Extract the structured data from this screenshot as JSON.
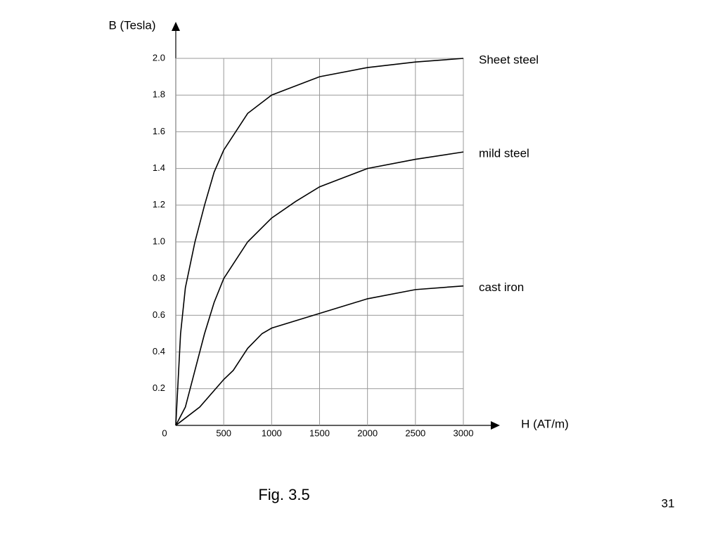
{
  "chart_data": {
    "type": "line",
    "y_label": "B (Tesla)",
    "x_label": "H (AT/m)",
    "xlim": [
      0,
      3000
    ],
    "ylim": [
      0,
      2
    ],
    "xticks": [
      0,
      500,
      1000,
      1500,
      2000,
      2500,
      3000
    ],
    "yticks": [
      0.2,
      0.4,
      0.6,
      0.8,
      {
        "value": 1,
        "label": "1.0"
      },
      1.2,
      1.4,
      1.6,
      1.8,
      {
        "value": 2,
        "label": "2.0"
      }
    ],
    "grid": true,
    "series": [
      {
        "name": "Sheet steel",
        "color": "#000000",
        "x": [
          0,
          50,
          100,
          200,
          300,
          400,
          500,
          750,
          1000,
          1500,
          2000,
          2500,
          3000
        ],
        "values": [
          0,
          0.5,
          0.75,
          1.0,
          1.2,
          1.38,
          1.5,
          1.7,
          1.8,
          1.9,
          1.95,
          1.98,
          2.0
        ]
      },
      {
        "name": "mild steel",
        "color": "#000000",
        "x": [
          0,
          100,
          200,
          300,
          400,
          500,
          750,
          1000,
          1250,
          1500,
          2000,
          2500,
          3000
        ],
        "values": [
          0,
          0.1,
          0.3,
          0.5,
          0.67,
          0.8,
          1.0,
          1.13,
          1.22,
          1.3,
          1.4,
          1.45,
          1.49
        ]
      },
      {
        "name": "cast iron",
        "color": "#000000",
        "x": [
          0,
          250,
          500,
          600,
          750,
          900,
          1000,
          1500,
          2000,
          2500,
          3000
        ],
        "values": [
          0,
          0.1,
          0.25,
          0.3,
          0.42,
          0.5,
          0.53,
          0.61,
          0.69,
          0.74,
          0.76
        ]
      }
    ]
  },
  "caption": "Fig. 3.5",
  "page_number": "31"
}
